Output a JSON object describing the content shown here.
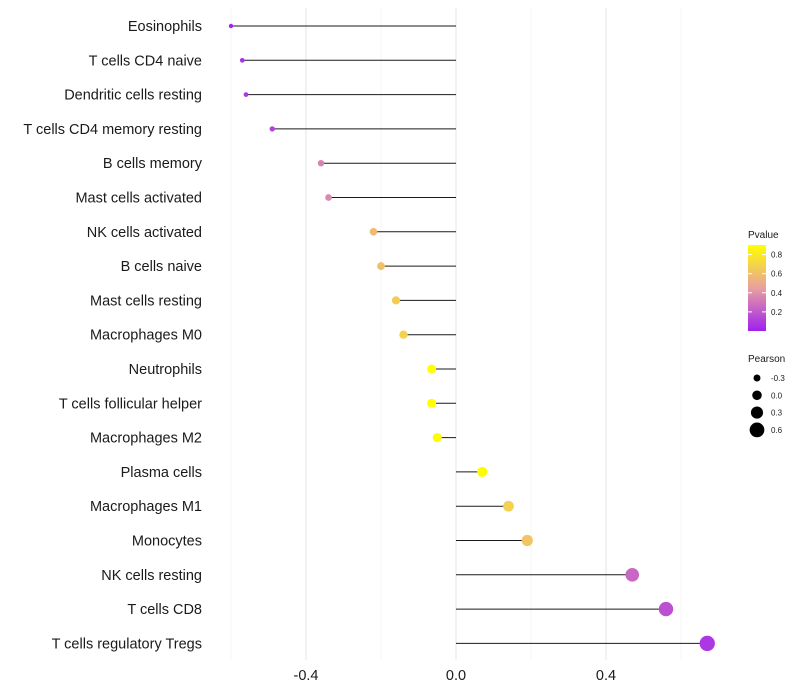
{
  "chart_data": {
    "type": "lollipop",
    "categories": [
      "Eosinophils",
      "T cells CD4 naive",
      "Dendritic cells resting",
      "T cells CD4 memory resting",
      "B cells memory",
      "Mast cells activated",
      "NK cells activated",
      "B cells naive",
      "Mast cells resting",
      "Macrophages M0",
      "Neutrophils",
      "T cells follicular helper",
      "Macrophages M2",
      "Plasma cells",
      "Macrophages M1",
      "Monocytes",
      "NK cells resting",
      "T cells CD8",
      "T cells regulatory  Tregs"
    ],
    "values": [
      -0.6,
      -0.57,
      -0.56,
      -0.49,
      -0.36,
      -0.34,
      -0.22,
      -0.2,
      -0.16,
      -0.14,
      -0.065,
      -0.065,
      -0.05,
      0.07,
      0.14,
      0.19,
      0.47,
      0.56,
      0.67
    ],
    "pvalues": [
      0.02,
      0.06,
      0.08,
      0.12,
      0.35,
      0.37,
      0.58,
      0.6,
      0.66,
      0.68,
      0.9,
      0.9,
      0.88,
      0.88,
      0.68,
      0.62,
      0.25,
      0.17,
      0.08
    ],
    "x_ticks": [
      "-0.4",
      "0.0",
      "0.4"
    ],
    "x_tick_values": [
      -0.4,
      0.0,
      0.4
    ],
    "xlim": [
      -0.66,
      0.73
    ],
    "xlabel": "",
    "ylabel": "",
    "grid": true,
    "color_legend": {
      "title": "Pvalue",
      "ticks": [
        "0.8",
        "0.6",
        "0.4",
        "0.2"
      ],
      "tick_values": [
        0.8,
        0.6,
        0.4,
        0.2
      ],
      "range": [
        0.0,
        0.9
      ],
      "colors": {
        "low": "#a020f0",
        "mid": "#e8a0a0",
        "high": "#ffff00"
      }
    },
    "size_legend": {
      "title": "Pearson",
      "labels": [
        "-0.3",
        "0.0",
        "0.3",
        "0.6"
      ],
      "values": [
        -0.3,
        0.0,
        0.3,
        0.6
      ]
    },
    "legend_position": "right"
  }
}
